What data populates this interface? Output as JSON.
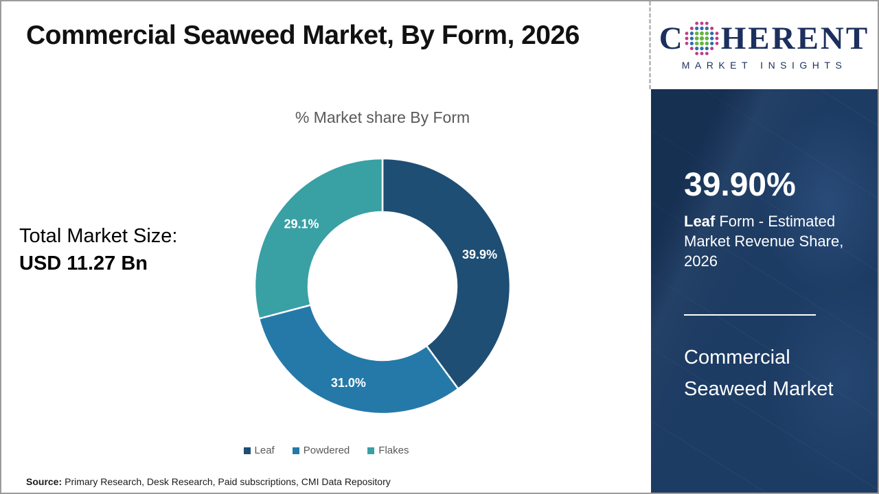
{
  "slide": {
    "title": "Commercial Seaweed Market, By Form, 2026",
    "source_label": "Source:",
    "source_text": "Primary Research, Desk Research, Paid subscriptions, CMI Data Repository"
  },
  "left": {
    "total_label": "Total Market Size:",
    "total_value": "USD 11.27 Bn"
  },
  "chart_data": {
    "type": "pie",
    "subtype": "donut",
    "title": "% Market share By Form",
    "categories": [
      "Leaf",
      "Powdered",
      "Flakes"
    ],
    "values": [
      39.9,
      31.0,
      29.1
    ],
    "data_labels": [
      "39.9%",
      "31.0%",
      "29.1%"
    ],
    "colors": [
      "#1f4e74",
      "#2579a9",
      "#39a0a4"
    ],
    "start_angle_deg": 0,
    "direction": "clockwise",
    "hole_ratio": 0.58,
    "legend_position": "bottom"
  },
  "panel": {
    "highlight_value": "39.90%",
    "highlight_bold": "Leaf",
    "highlight_rest": " Form - Estimated Market Revenue Share, 2026",
    "market_line1": "Commercial",
    "market_line2": "Seaweed Market",
    "bg_color": "#1d3c64"
  },
  "logo": {
    "brand_c": "C",
    "brand_rest": "HERENT",
    "brand_sub": "MARKET INSIGHTS",
    "navy": "#1c2f5e",
    "globe_green": "#62b43f",
    "globe_blue": "#2c6cb0",
    "globe_magenta": "#bf3d85"
  }
}
